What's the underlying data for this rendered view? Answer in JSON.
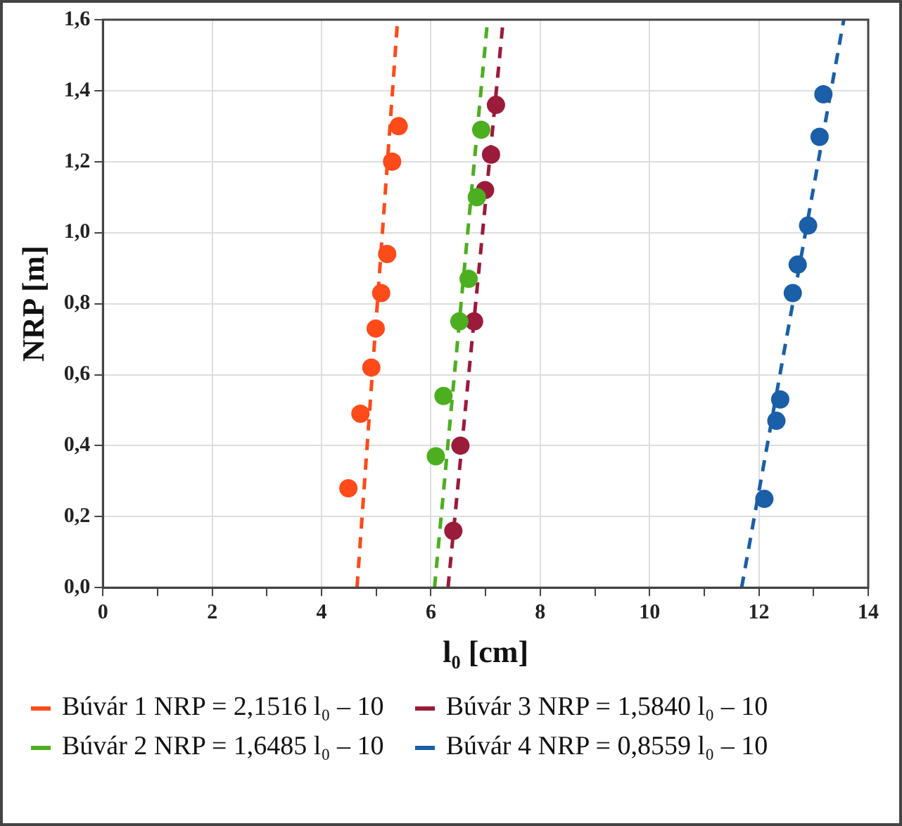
{
  "chart_data": {
    "type": "scatter",
    "xlabel": "l₀ [cm]",
    "ylabel": "NRP [m]",
    "xlim": [
      0,
      14
    ],
    "ylim": [
      0,
      1.6
    ],
    "xticks": [
      0,
      {
        "value": 1,
        "label": null
      },
      2,
      {
        "value": 3,
        "label": null
      },
      4,
      {
        "value": 5,
        "label": null
      },
      6,
      {
        "value": 7,
        "label": null
      },
      8,
      {
        "value": 9,
        "label": null
      },
      10,
      {
        "value": 11,
        "label": null
      },
      12,
      {
        "value": 13,
        "label": null
      },
      14
    ],
    "yticks": [
      {
        "value": 0,
        "label": "0,0"
      },
      {
        "value": 0.2,
        "label": "0,2"
      },
      {
        "value": 0.4,
        "label": "0,4"
      },
      {
        "value": 0.6,
        "label": "0,6"
      },
      {
        "value": 0.8,
        "label": "0,8"
      },
      {
        "value": 1,
        "label": "1,0"
      },
      {
        "value": 1.2,
        "label": "1,2"
      },
      {
        "value": 1.4,
        "label": "1,4"
      },
      {
        "value": 1.6,
        "label": "1,6"
      }
    ],
    "grid": true,
    "legend": "bottom",
    "marker": "circle",
    "series": [
      {
        "type": "scatter",
        "color": "#ff4a1a",
        "x": [
          4.49,
          4.71,
          4.91,
          4.99,
          5.09,
          5.2,
          5.29,
          5.41
        ],
        "values": [
          0.28,
          0.49,
          0.62,
          0.73,
          0.83,
          0.94,
          1.2,
          1.3
        ]
      },
      {
        "type": "scatter",
        "color": "#4caf20",
        "x": [
          6.09,
          6.23,
          6.52,
          6.69,
          6.84,
          6.92
        ],
        "values": [
          0.37,
          0.54,
          0.75,
          0.87,
          1.1,
          1.29
        ]
      },
      {
        "type": "scatter",
        "color": "#9b1b3a",
        "x": [
          6.41,
          6.54,
          6.79,
          6.99,
          7.1,
          7.19
        ],
        "values": [
          0.16,
          0.4,
          0.75,
          1.12,
          1.22,
          1.36
        ]
      },
      {
        "type": "scatter",
        "color": "#1a5fa8",
        "x": [
          12.1,
          12.32,
          12.39,
          12.62,
          12.71,
          12.9,
          13.11,
          13.18
        ],
        "values": [
          0.25,
          0.47,
          0.53,
          0.83,
          0.91,
          1.02,
          1.27,
          1.39
        ]
      },
      {
        "type": "line",
        "name": "Búvár 1  NRP = 2,1516 l₀ – 10",
        "color": "#ff4a1a",
        "line_style": "dashed",
        "marker": "none",
        "x": [
          4.648,
          5.391
        ],
        "values": [
          0,
          1.6
        ]
      },
      {
        "type": "line",
        "name": "Búvár 2  NRP = 1,6485 l₀ – 10",
        "color": "#4caf20",
        "line_style": "dashed",
        "marker": "none",
        "x": [
          6.066,
          7.037
        ],
        "values": [
          0,
          1.6
        ]
      },
      {
        "type": "line",
        "name": "Búvár 3  NRP = 1,5840 l₀ – 10",
        "color": "#9b1b3a",
        "line_style": "dashed",
        "marker": "none",
        "x": [
          6.313,
          7.323
        ],
        "values": [
          0,
          1.6
        ]
      },
      {
        "type": "line",
        "name": "Búvár 4  NRP = 0,8559 l₀ – 10",
        "color": "#1a5fa8",
        "line_style": "dashed",
        "marker": "none",
        "x": [
          11.684,
          13.553
        ],
        "values": [
          0,
          1.6
        ]
      }
    ]
  }
}
